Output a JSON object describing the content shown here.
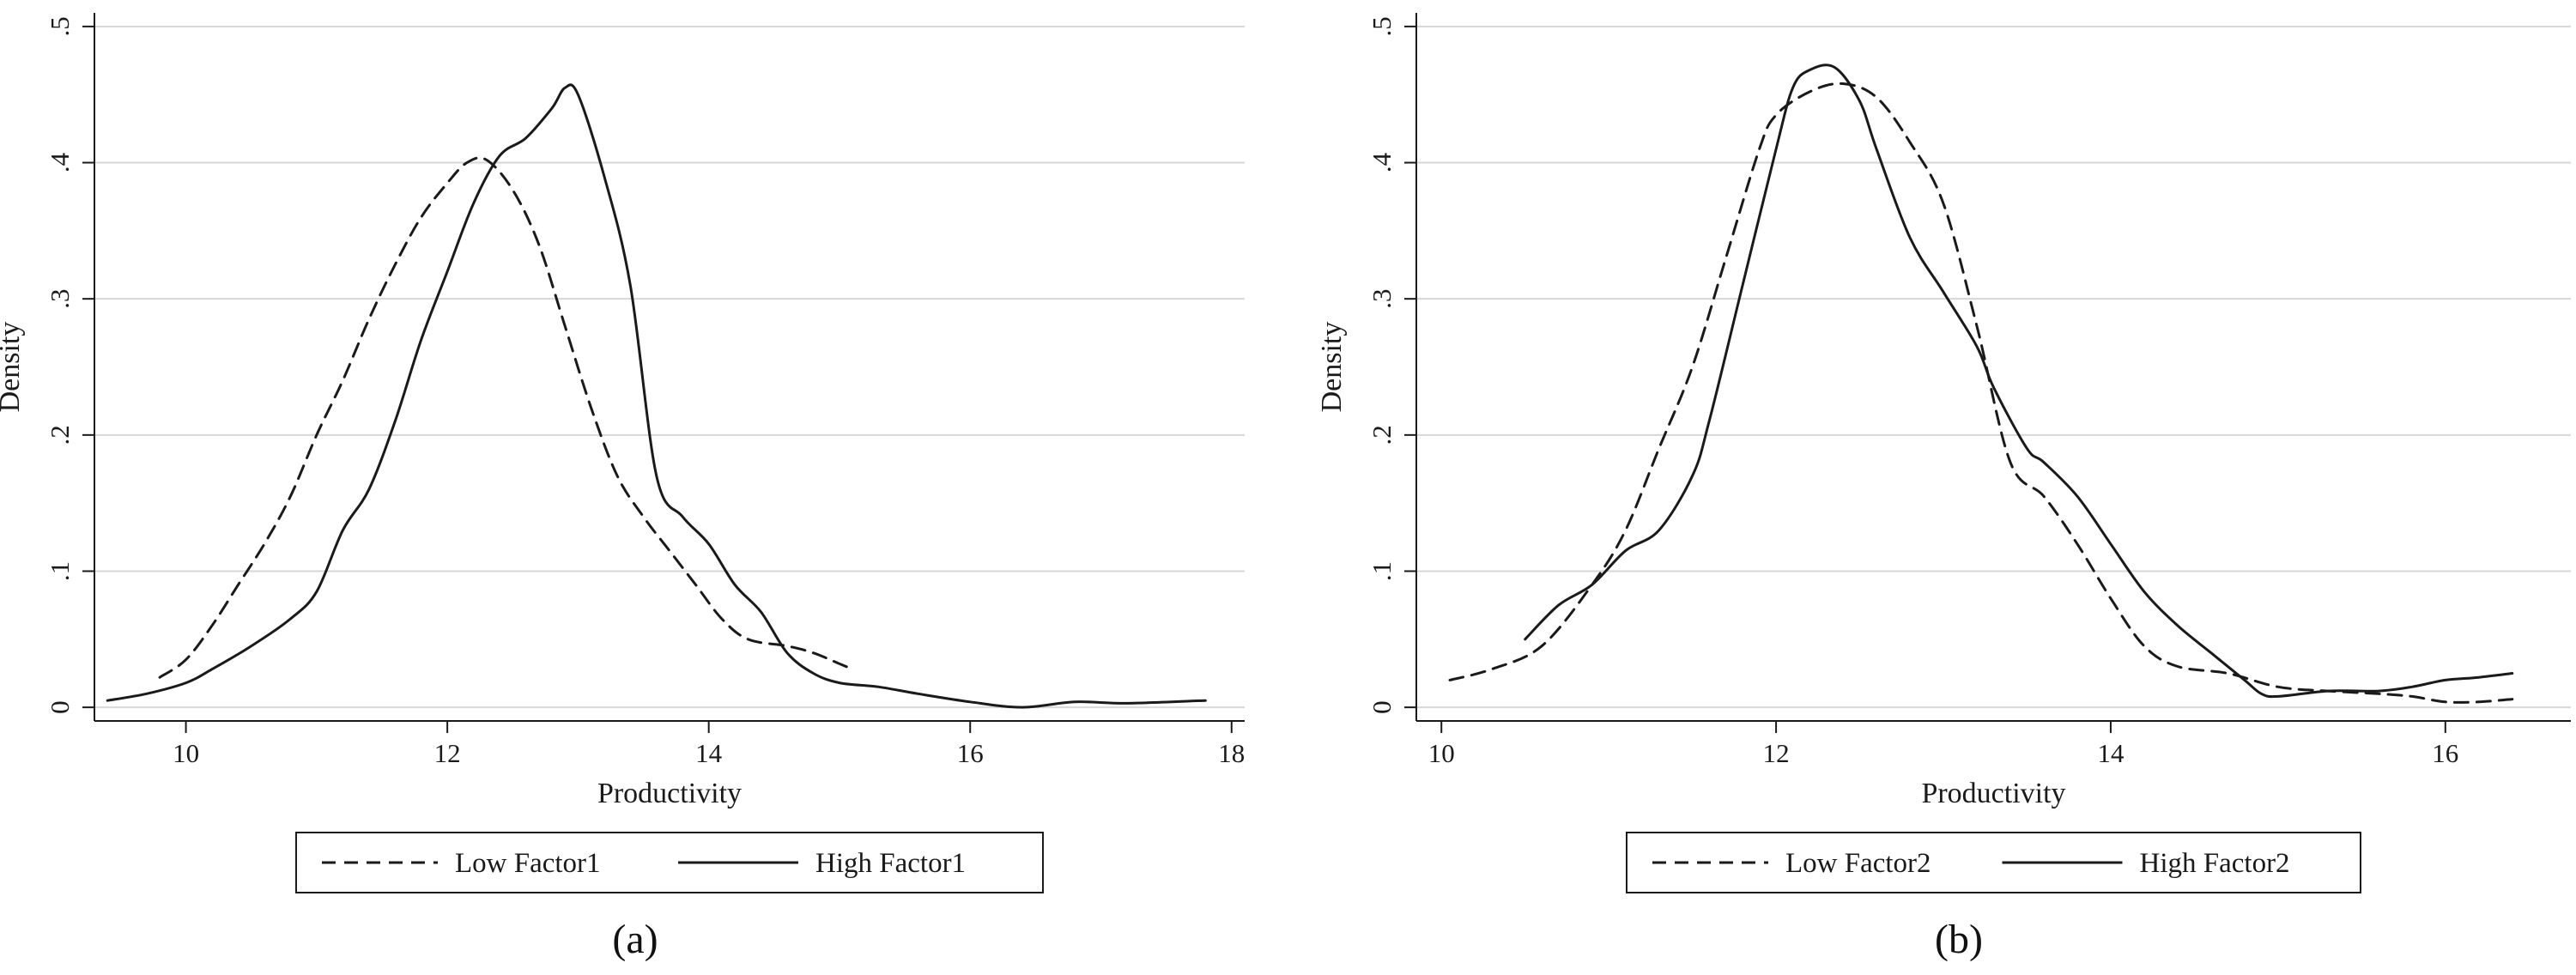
{
  "colors": {
    "line": "#1a1a1a",
    "grid": "#d7d7d7",
    "background": "#ffffff"
  },
  "chart_data": [
    {
      "type": "line",
      "caption": "(a)",
      "xlabel": "Productivity",
      "ylabel": "Density",
      "xlim": [
        9.3,
        18.1
      ],
      "ylim": [
        -0.01,
        0.51
      ],
      "x_ticks": [
        10,
        12,
        14,
        16,
        18
      ],
      "x_tick_labels": [
        "10",
        "12",
        "14",
        "16",
        "18"
      ],
      "y_ticks": [
        0,
        0.1,
        0.2,
        0.3,
        0.4,
        0.5
      ],
      "y_tick_labels": [
        "0",
        ".1",
        ".2",
        ".3",
        ".4",
        ".5"
      ],
      "grid": "horizontal",
      "legend_position": "bottom",
      "series": [
        {
          "name": "Low Factor1",
          "style": "dashed",
          "points": [
            [
              9.8,
              0.022
            ],
            [
              10.0,
              0.035
            ],
            [
              10.2,
              0.06
            ],
            [
              10.4,
              0.09
            ],
            [
              10.6,
              0.12
            ],
            [
              10.8,
              0.155
            ],
            [
              11.0,
              0.2
            ],
            [
              11.2,
              0.24
            ],
            [
              11.4,
              0.285
            ],
            [
              11.6,
              0.325
            ],
            [
              11.8,
              0.36
            ],
            [
              12.0,
              0.385
            ],
            [
              12.15,
              0.4
            ],
            [
              12.3,
              0.402
            ],
            [
              12.5,
              0.38
            ],
            [
              12.7,
              0.34
            ],
            [
              12.9,
              0.28
            ],
            [
              13.1,
              0.22
            ],
            [
              13.3,
              0.17
            ],
            [
              13.5,
              0.14
            ],
            [
              13.7,
              0.115
            ],
            [
              13.9,
              0.09
            ],
            [
              14.1,
              0.065
            ],
            [
              14.3,
              0.05
            ],
            [
              14.6,
              0.045
            ],
            [
              14.8,
              0.04
            ],
            [
              15.0,
              0.032
            ],
            [
              15.1,
              0.028
            ]
          ]
        },
        {
          "name": "High Factor1",
          "style": "solid",
          "points": [
            [
              9.4,
              0.005
            ],
            [
              9.7,
              0.01
            ],
            [
              10.0,
              0.018
            ],
            [
              10.2,
              0.028
            ],
            [
              10.5,
              0.045
            ],
            [
              10.8,
              0.065
            ],
            [
              11.0,
              0.085
            ],
            [
              11.2,
              0.13
            ],
            [
              11.4,
              0.16
            ],
            [
              11.6,
              0.21
            ],
            [
              11.8,
              0.27
            ],
            [
              12.0,
              0.32
            ],
            [
              12.2,
              0.37
            ],
            [
              12.4,
              0.405
            ],
            [
              12.6,
              0.418
            ],
            [
              12.8,
              0.44
            ],
            [
              12.9,
              0.455
            ],
            [
              13.0,
              0.45
            ],
            [
              13.2,
              0.39
            ],
            [
              13.4,
              0.31
            ],
            [
              13.6,
              0.17
            ],
            [
              13.8,
              0.14
            ],
            [
              14.0,
              0.12
            ],
            [
              14.2,
              0.09
            ],
            [
              14.4,
              0.07
            ],
            [
              14.6,
              0.04
            ],
            [
              14.8,
              0.025
            ],
            [
              15.0,
              0.018
            ],
            [
              15.3,
              0.015
            ],
            [
              15.6,
              0.01
            ],
            [
              16.0,
              0.004
            ],
            [
              16.4,
              0.0
            ],
            [
              16.8,
              0.004
            ],
            [
              17.2,
              0.003
            ],
            [
              17.8,
              0.005
            ]
          ]
        }
      ]
    },
    {
      "type": "line",
      "caption": "(b)",
      "xlabel": "Productivity",
      "ylabel": "Density",
      "xlim": [
        9.85,
        16.75
      ],
      "ylim": [
        -0.01,
        0.51
      ],
      "x_ticks": [
        10,
        12,
        14,
        16
      ],
      "x_tick_labels": [
        "10",
        "12",
        "14",
        "16"
      ],
      "y_ticks": [
        0,
        0.1,
        0.2,
        0.3,
        0.4,
        0.5
      ],
      "y_tick_labels": [
        "0",
        ".1",
        ".2",
        ".3",
        ".4",
        ".5"
      ],
      "grid": "horizontal",
      "legend_position": "bottom",
      "series": [
        {
          "name": "Low Factor2",
          "style": "dashed",
          "points": [
            [
              10.05,
              0.02
            ],
            [
              10.3,
              0.028
            ],
            [
              10.6,
              0.045
            ],
            [
              10.9,
              0.09
            ],
            [
              11.1,
              0.13
            ],
            [
              11.3,
              0.19
            ],
            [
              11.5,
              0.25
            ],
            [
              11.7,
              0.33
            ],
            [
              11.9,
              0.41
            ],
            [
              12.0,
              0.435
            ],
            [
              12.2,
              0.452
            ],
            [
              12.4,
              0.458
            ],
            [
              12.6,
              0.448
            ],
            [
              12.8,
              0.415
            ],
            [
              13.0,
              0.37
            ],
            [
              13.2,
              0.28
            ],
            [
              13.4,
              0.18
            ],
            [
              13.6,
              0.155
            ],
            [
              13.8,
              0.12
            ],
            [
              14.0,
              0.08
            ],
            [
              14.2,
              0.045
            ],
            [
              14.4,
              0.03
            ],
            [
              14.7,
              0.025
            ],
            [
              15.0,
              0.015
            ],
            [
              15.3,
              0.012
            ],
            [
              15.6,
              0.01
            ],
            [
              15.8,
              0.008
            ],
            [
              16.0,
              0.004
            ],
            [
              16.2,
              0.004
            ],
            [
              16.4,
              0.006
            ]
          ]
        },
        {
          "name": "High Factor2",
          "style": "solid",
          "points": [
            [
              10.5,
              0.05
            ],
            [
              10.7,
              0.075
            ],
            [
              10.9,
              0.09
            ],
            [
              11.1,
              0.115
            ],
            [
              11.3,
              0.13
            ],
            [
              11.5,
              0.17
            ],
            [
              11.6,
              0.21
            ],
            [
              11.8,
              0.31
            ],
            [
              12.0,
              0.41
            ],
            [
              12.1,
              0.455
            ],
            [
              12.2,
              0.468
            ],
            [
              12.35,
              0.47
            ],
            [
              12.5,
              0.445
            ],
            [
              12.6,
              0.41
            ],
            [
              12.8,
              0.345
            ],
            [
              13.0,
              0.305
            ],
            [
              13.2,
              0.265
            ],
            [
              13.3,
              0.235
            ],
            [
              13.5,
              0.19
            ],
            [
              13.6,
              0.18
            ],
            [
              13.8,
              0.155
            ],
            [
              14.0,
              0.12
            ],
            [
              14.2,
              0.085
            ],
            [
              14.4,
              0.06
            ],
            [
              14.6,
              0.04
            ],
            [
              14.8,
              0.02
            ],
            [
              14.9,
              0.01
            ],
            [
              15.0,
              0.008
            ],
            [
              15.3,
              0.012
            ],
            [
              15.6,
              0.012
            ],
            [
              15.8,
              0.015
            ],
            [
              16.0,
              0.02
            ],
            [
              16.2,
              0.022
            ],
            [
              16.4,
              0.025
            ]
          ]
        }
      ]
    }
  ]
}
